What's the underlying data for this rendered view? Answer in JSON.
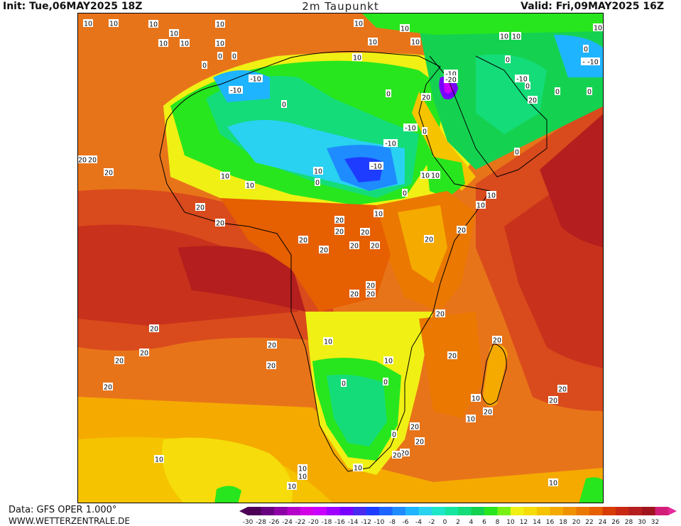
{
  "header": {
    "init": "Init: Tue,06MAY2025 18Z",
    "title": "2m Taupunkt",
    "valid": "Valid: Fri,09MAY2025 16Z"
  },
  "footer": {
    "source": "Data: GFS OPER 1.000°",
    "site": "WWW.WETTERZENTRALE.DE"
  },
  "legend": {
    "ticks": [
      "-30",
      "-28",
      "-26",
      "-24",
      "-22",
      "-20",
      "-18",
      "-16",
      "-14",
      "-12",
      "-10",
      "-8",
      "-6",
      "-4",
      "-2",
      "0",
      "2",
      "4",
      "6",
      "8",
      "10",
      "12",
      "14",
      "16",
      "18",
      "20",
      "22",
      "24",
      "26",
      "28",
      "30",
      "32"
    ],
    "colors": [
      "#4b0055",
      "#680080",
      "#8e00a6",
      "#b400c8",
      "#d300e6",
      "#c900ff",
      "#a000ff",
      "#7800ff",
      "#4b28f0",
      "#1e3cff",
      "#1e64ff",
      "#1e8cff",
      "#1eb4ff",
      "#28d2f0",
      "#1ee6c8",
      "#14e6a0",
      "#14dc78",
      "#14d250",
      "#28e61e",
      "#78f014",
      "#f0f014",
      "#f5dc0a",
      "#f5c300",
      "#f5aa00",
      "#f09100",
      "#eb7800",
      "#e65f00",
      "#d73c00",
      "#c82814",
      "#b41e1e",
      "#a0141e",
      "#d21e78"
    ],
    "end_color": "#e6289b"
  },
  "map": {
    "labels": [
      "10",
      "0",
      "-10",
      "-20",
      "20"
    ]
  }
}
